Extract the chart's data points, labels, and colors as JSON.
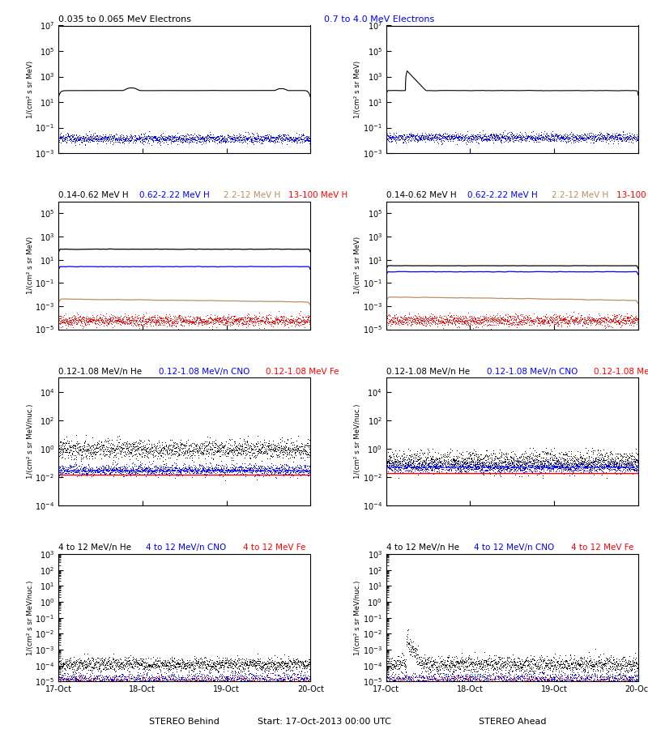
{
  "row0_title_black": "0.035 to 0.065 MeV Electrons",
  "row0_title_blue": "0.7 to 4.0 MeV Electrons",
  "row1_titles": [
    {
      "text": "0.14-0.62 MeV H",
      "color": "#000000"
    },
    {
      "text": "0.62-2.22 MeV H",
      "color": "#0000ff"
    },
    {
      "text": "2.2-12 MeV H",
      "color": "#bc8f5f"
    },
    {
      "text": "13-100 MeV H",
      "color": "#ff0000"
    }
  ],
  "row2_titles": [
    {
      "text": "0.12-1.08 MeV/n He",
      "color": "#000000"
    },
    {
      "text": "0.12-1.08 MeV/n CNO",
      "color": "#0000ff"
    },
    {
      "text": "0.12-1.08 MeV Fe",
      "color": "#ff0000"
    }
  ],
  "row3_titles": [
    {
      "text": "4 to 12 MeV/n He",
      "color": "#000000"
    },
    {
      "text": "4 to 12 MeV/n CNO",
      "color": "#0000ff"
    },
    {
      "text": "4 to 12 MeV Fe",
      "color": "#ff0000"
    }
  ],
  "xlabel_left": "STEREO Behind",
  "xlabel_center": "Start: 17-Oct-2013 00:00 UTC",
  "xlabel_right": "STEREO Ahead",
  "ylabel_mev": "1/(cm² s sr MeV)",
  "ylabel_nuc": "1/(cm² s sr MeV/nuc.)",
  "xtick_labels": [
    "17-Oct",
    "18-Oct",
    "19-Oct",
    "20-Oct"
  ],
  "ylim_row0": [
    0.001,
    10000000.0
  ],
  "ylim_row1": [
    1e-05,
    1000000.0
  ],
  "ylim_row2": [
    0.0001,
    100000.0
  ],
  "ylim_row3": [
    1e-05,
    1000.0
  ],
  "tan_color": "#bc8f5f"
}
